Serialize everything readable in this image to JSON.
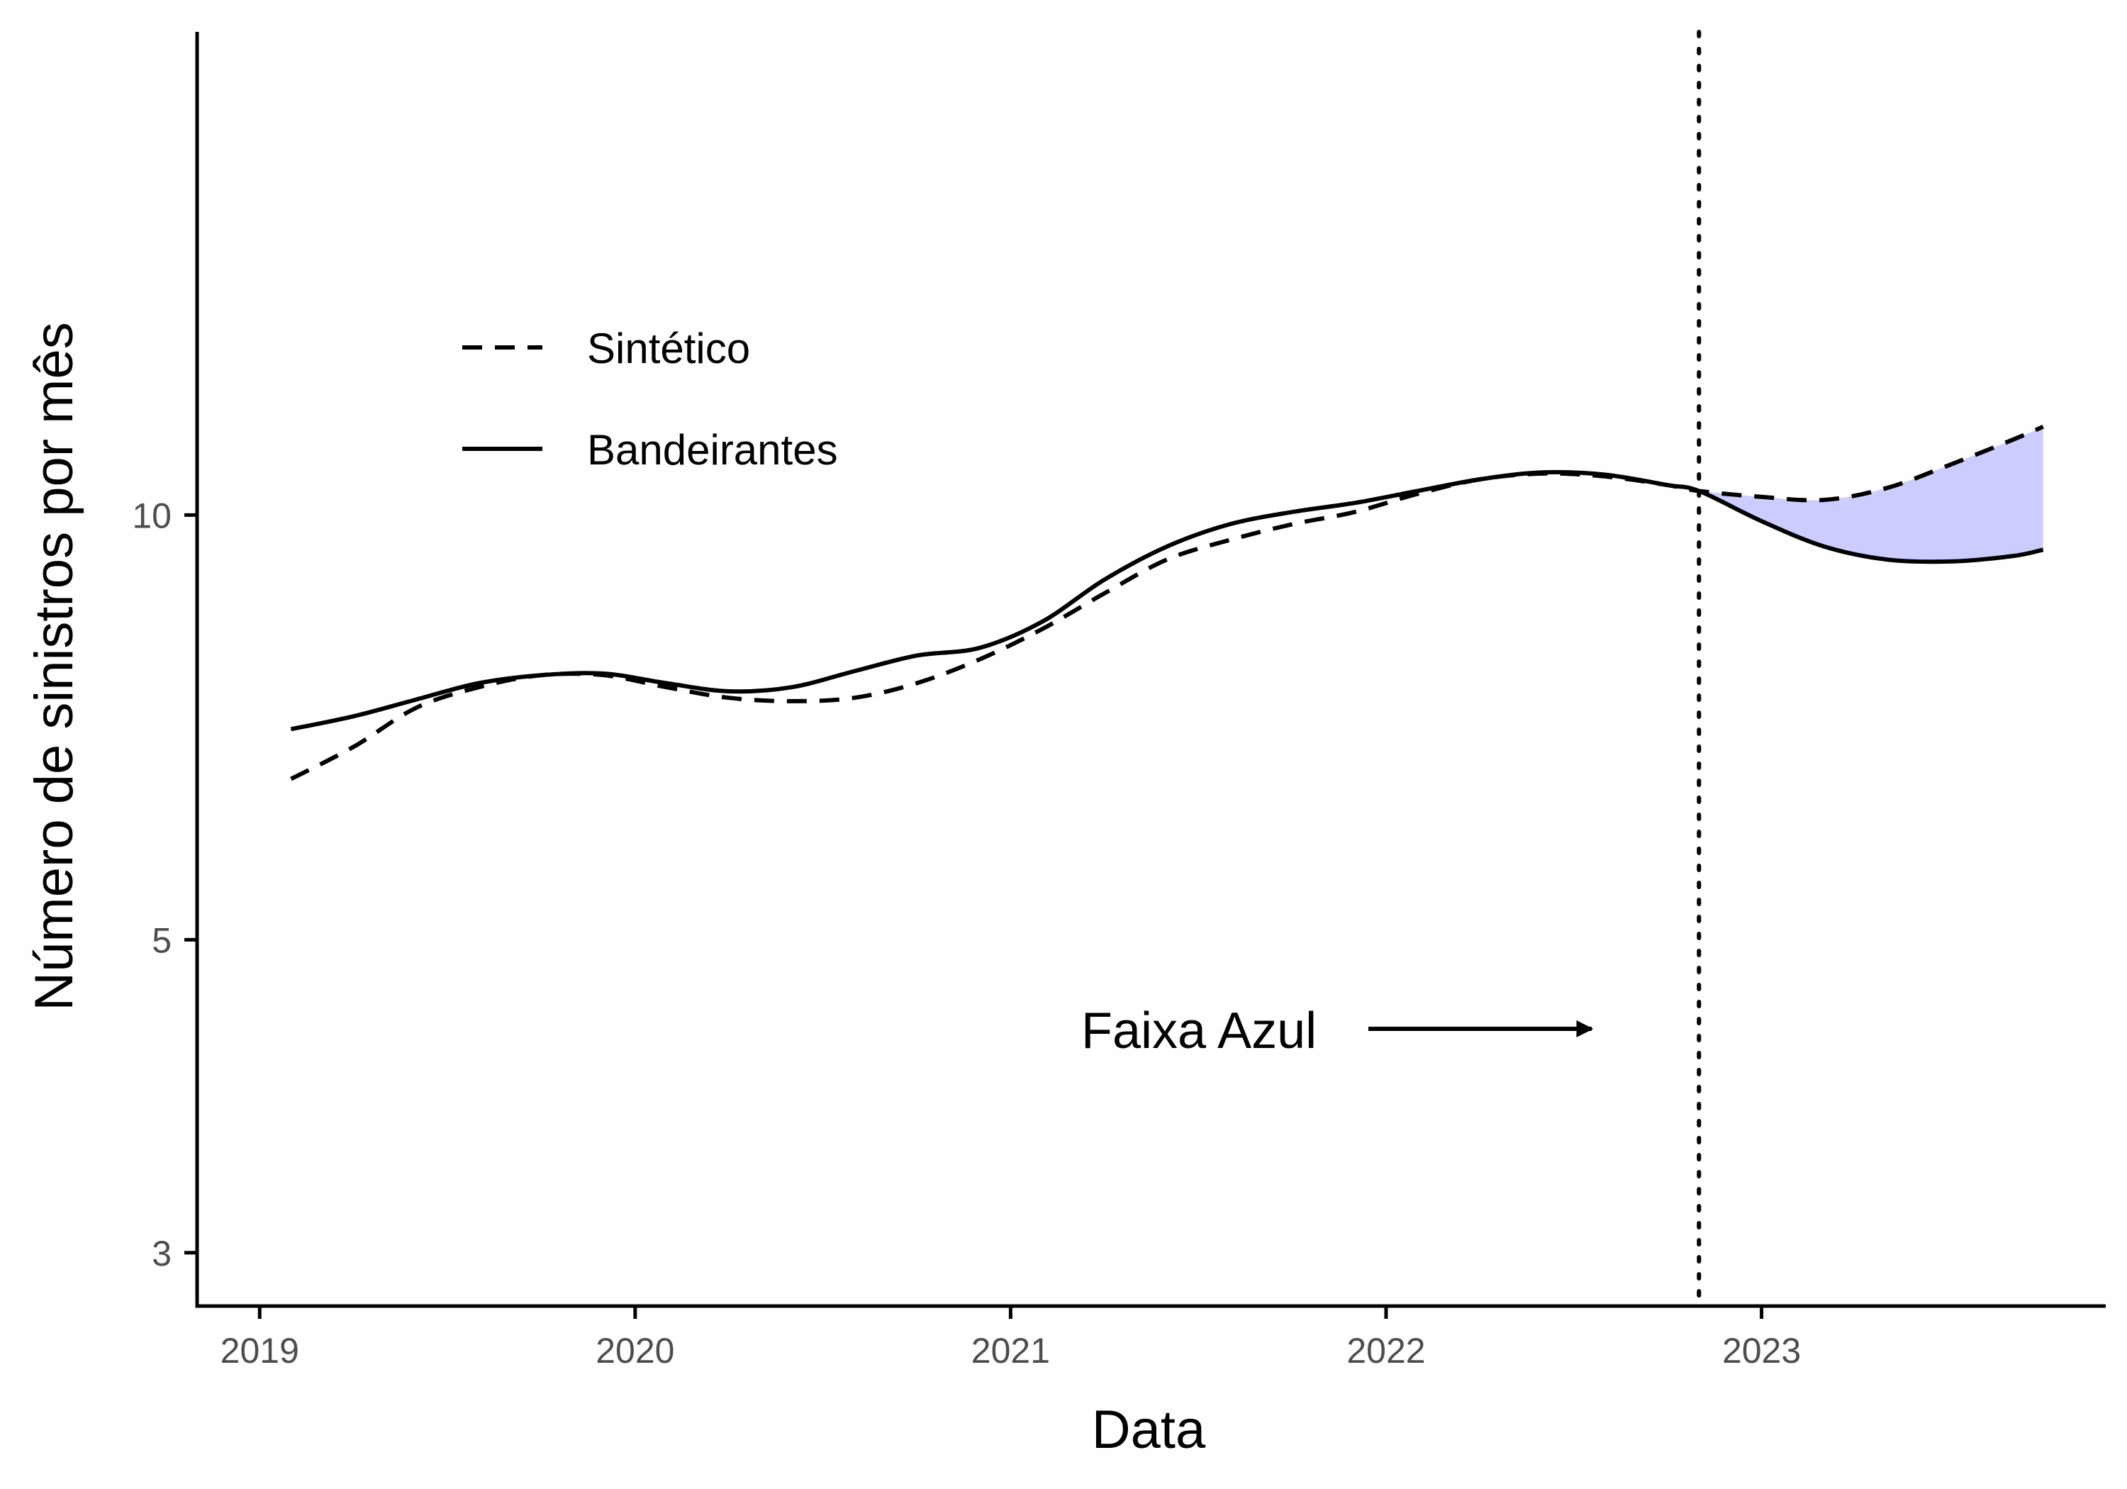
{
  "chart_data": {
    "type": "line",
    "xlabel": "Data",
    "ylabel": "Número de sinistros por mês",
    "y_scale": "log",
    "x_ticks": [
      "2019",
      "2020",
      "2021",
      "2022",
      "2023"
    ],
    "y_ticks": [
      "3",
      "5",
      "10"
    ],
    "xlim": [
      "2018-11",
      "2023-12"
    ],
    "ylim": [
      2.75,
      22
    ],
    "legend_position": "top-left",
    "intervention": {
      "date": "2022-11",
      "label": "Faixa Azul",
      "line_style": "dotted"
    },
    "fill_color": "#CCCCFF",
    "series": [
      {
        "name": "Sintético",
        "line_style": "dashed",
        "x": [
          "2019-02",
          "2019-04",
          "2019-06",
          "2019-08",
          "2019-10",
          "2019-12",
          "2020-02",
          "2020-04",
          "2020-06",
          "2020-08",
          "2020-10",
          "2020-12",
          "2021-02",
          "2021-04",
          "2021-06",
          "2021-08",
          "2021-10",
          "2021-12",
          "2022-02",
          "2022-04",
          "2022-06",
          "2022-08",
          "2022-10",
          "2022-11",
          "2023-01",
          "2023-03",
          "2023-05",
          "2023-07",
          "2023-09",
          "2023-10"
        ],
        "values": [
          6.5,
          6.85,
          7.3,
          7.55,
          7.7,
          7.7,
          7.55,
          7.42,
          7.38,
          7.42,
          7.6,
          7.9,
          8.3,
          8.8,
          9.3,
          9.6,
          9.85,
          10.05,
          10.35,
          10.6,
          10.7,
          10.65,
          10.5,
          10.4,
          10.3,
          10.25,
          10.45,
          10.85,
          11.3,
          11.55
        ]
      },
      {
        "name": "Bandeirantes",
        "line_style": "solid",
        "x": [
          "2019-02",
          "2019-04",
          "2019-06",
          "2019-08",
          "2019-10",
          "2019-12",
          "2020-02",
          "2020-04",
          "2020-06",
          "2020-08",
          "2020-10",
          "2020-12",
          "2021-02",
          "2021-04",
          "2021-06",
          "2021-08",
          "2021-10",
          "2021-12",
          "2022-02",
          "2022-04",
          "2022-06",
          "2022-08",
          "2022-10",
          "2022-11",
          "2023-01",
          "2023-03",
          "2023-05",
          "2023-07",
          "2023-09",
          "2023-10"
        ],
        "values": [
          7.05,
          7.2,
          7.4,
          7.6,
          7.7,
          7.72,
          7.6,
          7.5,
          7.55,
          7.75,
          7.95,
          8.05,
          8.4,
          9.0,
          9.5,
          9.85,
          10.05,
          10.2,
          10.4,
          10.6,
          10.72,
          10.68,
          10.5,
          10.4,
          9.9,
          9.5,
          9.3,
          9.27,
          9.35,
          9.45
        ]
      }
    ]
  }
}
